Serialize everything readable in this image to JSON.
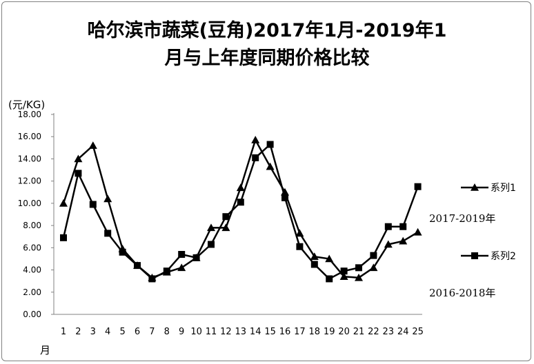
{
  "chart_data": {
    "type": "line",
    "title_line1": "哈尔滨市蔬菜(豆角)2017年1月-2019年1",
    "title_line2": "月与上年度同期价格比较",
    "ylabel": "(元/KG)",
    "xlabel": "月",
    "ylim": [
      0,
      18
    ],
    "y_ticks": [
      "0.00",
      "2.00",
      "4.00",
      "6.00",
      "8.00",
      "10.00",
      "12.00",
      "14.00",
      "16.00",
      "18.00"
    ],
    "categories": [
      "1",
      "2",
      "3",
      "4",
      "5",
      "6",
      "7",
      "8",
      "9",
      "10",
      "11",
      "12",
      "13",
      "14",
      "15",
      "16",
      "17",
      "18",
      "19",
      "20",
      "21",
      "22",
      "23",
      "24",
      "25"
    ],
    "series": [
      {
        "name": "系列1",
        "sublabel": "2017-2019年",
        "marker": "triangle",
        "color": "#000000",
        "values": [
          10.0,
          14.0,
          15.2,
          10.4,
          5.9,
          4.4,
          3.3,
          3.8,
          4.2,
          5.1,
          7.8,
          7.8,
          11.4,
          15.7,
          13.3,
          11.0,
          7.3,
          5.2,
          5.0,
          3.4,
          3.3,
          4.2,
          6.3,
          6.6,
          7.4
        ]
      },
      {
        "name": "系列2",
        "sublabel": "2016-2018年",
        "marker": "square",
        "color": "#000000",
        "values": [
          6.9,
          12.7,
          9.9,
          7.3,
          5.6,
          4.4,
          3.2,
          3.9,
          5.4,
          5.1,
          6.3,
          8.8,
          10.1,
          14.1,
          15.3,
          10.5,
          6.1,
          4.5,
          3.2,
          3.9,
          4.2,
          5.3,
          7.9,
          7.9,
          11.5
        ]
      }
    ]
  }
}
